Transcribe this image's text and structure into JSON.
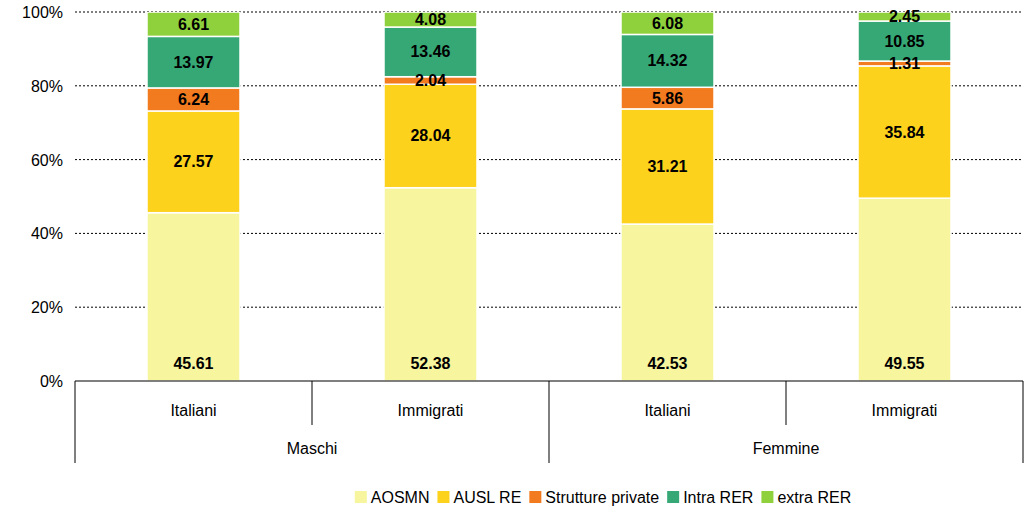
{
  "chart_data": {
    "type": "bar",
    "stacked": true,
    "data_labels": true,
    "grid": true,
    "legend": "bottom",
    "categories": [
      "Italiani",
      "Immigrati",
      "Italiani",
      "Immigrati"
    ],
    "category_groups": [
      "Maschi",
      "Femmine"
    ],
    "ylim": [
      0,
      100
    ],
    "yticks": [
      {
        "value": 0,
        "label": "0%"
      },
      {
        "value": 20,
        "label": "20%"
      },
      {
        "value": 40,
        "label": "40%"
      },
      {
        "value": 60,
        "label": "60%"
      },
      {
        "value": 80,
        "label": "80%"
      },
      {
        "value": 100,
        "label": "100%"
      }
    ],
    "series": [
      {
        "name": "AOSMN",
        "color": "#f7f59e",
        "values": [
          45.61,
          52.38,
          42.53,
          49.55
        ]
      },
      {
        "name": "AUSL RE",
        "color": "#fcd21c",
        "values": [
          27.57,
          28.04,
          31.21,
          35.84
        ]
      },
      {
        "name": "Strutture private",
        "color": "#f27b1f",
        "values": [
          6.24,
          2.04,
          5.86,
          1.31
        ]
      },
      {
        "name": "Intra RER",
        "color": "#35a875",
        "values": [
          13.97,
          13.46,
          14.32,
          10.85
        ]
      },
      {
        "name": "extra RER",
        "color": "#8fd13c",
        "values": [
          6.61,
          4.08,
          6.08,
          2.45
        ]
      }
    ]
  }
}
